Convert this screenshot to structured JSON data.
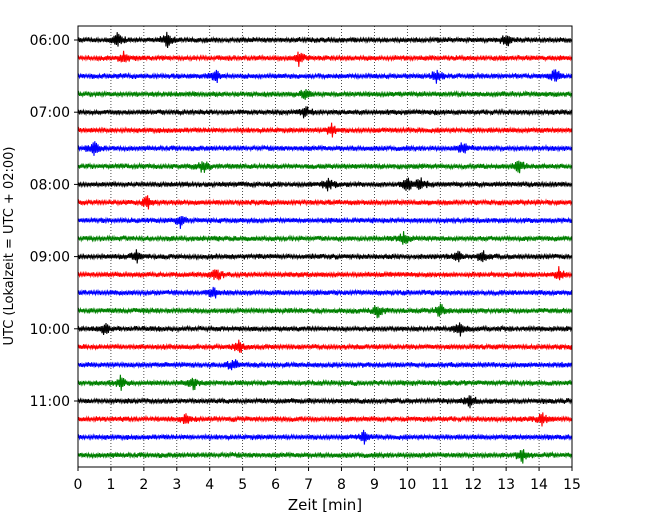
{
  "chart_data": {
    "type": "line",
    "title": "",
    "xlabel": "Zeit  [min]",
    "ylabel": "UTC (Lokalzeit = UTC + 02:00)",
    "xlim": [
      0,
      15
    ],
    "x_ticks": [
      0,
      1,
      2,
      3,
      4,
      5,
      6,
      7,
      8,
      9,
      10,
      11,
      12,
      13,
      14,
      15
    ],
    "x_tick_labels": [
      "0",
      "1",
      "2",
      "3",
      "4",
      "5",
      "6",
      "7",
      "8",
      "9",
      "10",
      "11",
      "12",
      "13",
      "14",
      "15"
    ],
    "y_tick_labels": [
      "06:00",
      "07:00",
      "08:00",
      "09:00",
      "10:00",
      "11:00"
    ],
    "y_tick_rows": [
      0,
      4,
      8,
      12,
      16,
      20
    ],
    "grid": "vertical dotted",
    "trace_colors": [
      "#000000",
      "#ff0000",
      "#0000ff",
      "#008000"
    ],
    "rows": [
      {
        "time": "06:00",
        "color": "#000000",
        "events": [
          1.2,
          2.7,
          13.0
        ]
      },
      {
        "time": "06:15",
        "color": "#ff0000",
        "events": [
          1.4,
          6.7
        ]
      },
      {
        "time": "06:30",
        "color": "#0000ff",
        "events": [
          4.2,
          10.9,
          14.5
        ]
      },
      {
        "time": "06:45",
        "color": "#008000",
        "events": [
          6.9
        ]
      },
      {
        "time": "07:00",
        "color": "#000000",
        "events": [
          6.9
        ]
      },
      {
        "time": "07:15",
        "color": "#ff0000",
        "events": [
          7.7
        ]
      },
      {
        "time": "07:30",
        "color": "#0000ff",
        "events": [
          0.5,
          11.7
        ]
      },
      {
        "time": "07:45",
        "color": "#008000",
        "events": [
          3.8,
          13.4
        ]
      },
      {
        "time": "08:00",
        "color": "#000000",
        "events": [
          7.6,
          10.0,
          10.4
        ]
      },
      {
        "time": "08:15",
        "color": "#ff0000",
        "events": [
          2.1
        ]
      },
      {
        "time": "08:30",
        "color": "#0000ff",
        "events": [
          3.1
        ]
      },
      {
        "time": "08:45",
        "color": "#008000",
        "events": [
          9.9
        ]
      },
      {
        "time": "09:00",
        "color": "#000000",
        "events": [
          1.8,
          11.5,
          12.3
        ]
      },
      {
        "time": "09:15",
        "color": "#ff0000",
        "events": [
          4.2,
          14.6
        ]
      },
      {
        "time": "09:30",
        "color": "#0000ff",
        "events": [
          4.1
        ]
      },
      {
        "time": "09:45",
        "color": "#008000",
        "events": [
          9.1,
          11.0
        ]
      },
      {
        "time": "10:00",
        "color": "#000000",
        "events": [
          0.8,
          11.6
        ]
      },
      {
        "time": "10:15",
        "color": "#ff0000",
        "events": [
          4.9
        ]
      },
      {
        "time": "10:30",
        "color": "#0000ff",
        "events": [
          4.7
        ]
      },
      {
        "time": "10:45",
        "color": "#008000",
        "events": [
          1.3,
          3.5
        ]
      },
      {
        "time": "11:00",
        "color": "#000000",
        "events": [
          11.9
        ]
      },
      {
        "time": "11:15",
        "color": "#ff0000",
        "events": [
          3.3,
          14.1
        ]
      },
      {
        "time": "11:30",
        "color": "#0000ff",
        "events": [
          8.7
        ]
      },
      {
        "time": "11:45",
        "color": "#008000",
        "events": [
          13.5
        ]
      }
    ]
  }
}
